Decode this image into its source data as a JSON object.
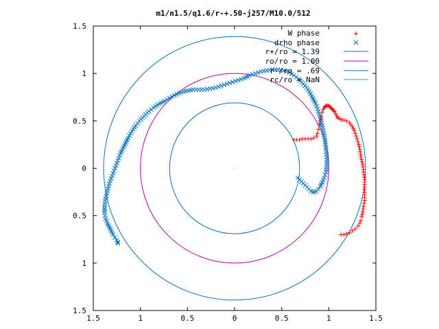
{
  "chart_data": {
    "type": "scatter",
    "title": "m1/n1.5/q1.6/r-+.50-j257/M10.0/512",
    "xlabel": "",
    "ylabel": "",
    "xlim": [
      -1.5,
      1.5
    ],
    "ylim": [
      -1.5,
      1.5
    ],
    "grid": false,
    "legend_position": "top-right",
    "tick_values": [
      -1.5,
      -1,
      -0.5,
      0,
      0.5,
      1,
      1.5
    ],
    "x_tick_labels": [
      "1.5",
      "1",
      "0.5",
      "0",
      "0.5",
      "1",
      "1.5"
    ],
    "y_tick_labels": [
      "1.5",
      "1",
      "0.5",
      "0",
      "0.5",
      "1",
      "1.5"
    ],
    "series": [
      {
        "name": "W phase",
        "marker": "plus",
        "color": "#ff0000",
        "x": [
          0.63,
          0.66,
          0.69,
          0.72,
          0.75,
          0.78,
          0.81,
          0.84,
          0.87,
          0.88,
          0.89,
          0.9,
          0.91,
          0.92,
          0.93,
          0.94,
          0.95,
          0.96,
          0.97,
          0.98,
          0.99,
          1.0,
          1.01,
          1.02,
          1.03,
          1.04,
          1.05,
          1.06,
          1.07,
          1.08,
          1.09,
          1.1,
          1.12,
          1.14,
          1.16,
          1.19,
          1.22,
          1.25,
          1.27,
          1.29,
          1.31,
          1.33,
          1.34,
          1.36,
          1.37,
          1.38,
          1.38,
          1.38,
          1.38,
          1.37,
          1.36,
          1.35,
          1.34,
          1.33,
          1.31,
          1.28,
          1.25,
          1.22,
          1.19,
          1.16,
          1.13
        ],
        "y": [
          0.3,
          0.3,
          0.3,
          0.31,
          0.31,
          0.31,
          0.31,
          0.32,
          0.34,
          0.37,
          0.41,
          0.45,
          0.5,
          0.55,
          0.59,
          0.62,
          0.64,
          0.65,
          0.66,
          0.66,
          0.66,
          0.66,
          0.65,
          0.64,
          0.63,
          0.62,
          0.61,
          0.6,
          0.58,
          0.56,
          0.54,
          0.53,
          0.52,
          0.51,
          0.51,
          0.5,
          0.48,
          0.44,
          0.4,
          0.34,
          0.28,
          0.2,
          0.12,
          0.04,
          -0.04,
          -0.12,
          -0.2,
          -0.28,
          -0.34,
          -0.4,
          -0.46,
          -0.51,
          -0.55,
          -0.58,
          -0.61,
          -0.64,
          -0.66,
          -0.68,
          -0.69,
          -0.7,
          -0.7
        ]
      },
      {
        "name": "drho phase",
        "marker": "cross",
        "color": "#0070c0",
        "x": [
          0.67,
          0.69,
          0.71,
          0.73,
          0.75,
          0.77,
          0.79,
          0.81,
          0.83,
          0.85,
          0.87,
          0.89,
          0.91,
          0.93,
          0.95,
          0.97,
          0.98,
          0.98,
          0.97,
          0.96,
          0.94,
          0.92,
          0.89,
          0.86,
          0.82,
          0.78,
          0.73,
          0.68,
          0.63,
          0.58,
          0.52,
          0.46,
          0.4,
          0.34,
          0.28,
          0.22,
          0.16,
          0.1,
          0.04,
          -0.02,
          -0.08,
          -0.14,
          -0.2,
          -0.26,
          -0.32,
          -0.38,
          -0.44,
          -0.49,
          -0.54,
          -0.59,
          -0.64,
          -0.69,
          -0.74,
          -0.8,
          -0.86,
          -0.91,
          -0.96,
          -1.01,
          -1.05,
          -1.09,
          -1.13,
          -1.17,
          -1.21,
          -1.24,
          -1.27,
          -1.3,
          -1.33,
          -1.35,
          -1.37,
          -1.38,
          -1.38,
          -1.37,
          -1.35,
          -1.33,
          -1.31,
          -1.29,
          -1.27,
          -1.25,
          -1.24,
          -1.24
        ],
        "y": [
          -0.1,
          -0.12,
          -0.14,
          -0.16,
          -0.18,
          -0.2,
          -0.22,
          -0.24,
          -0.25,
          -0.25,
          -0.24,
          -0.22,
          -0.19,
          -0.15,
          -0.1,
          -0.04,
          0.04,
          0.12,
          0.2,
          0.3,
          0.4,
          0.5,
          0.6,
          0.68,
          0.76,
          0.83,
          0.89,
          0.94,
          0.98,
          1.01,
          1.03,
          1.04,
          1.04,
          1.03,
          1.02,
          1.0,
          0.98,
          0.95,
          0.93,
          0.91,
          0.89,
          0.87,
          0.85,
          0.84,
          0.83,
          0.83,
          0.83,
          0.82,
          0.81,
          0.79,
          0.77,
          0.74,
          0.71,
          0.68,
          0.64,
          0.6,
          0.55,
          0.5,
          0.45,
          0.39,
          0.32,
          0.24,
          0.16,
          0.08,
          0.0,
          -0.08,
          -0.16,
          -0.24,
          -0.32,
          -0.4,
          -0.47,
          -0.53,
          -0.58,
          -0.62,
          -0.66,
          -0.7,
          -0.73,
          -0.76,
          -0.78,
          -0.79
        ]
      },
      {
        "name": "r+/ro = 1.39",
        "marker": "line",
        "color": "#0072bd",
        "radius": 1.39
      },
      {
        "name": "ro/ro = 1.00",
        "marker": "line",
        "color": "#b000b0",
        "radius": 1.0
      },
      {
        "name": "r-/ro = .69",
        "marker": "line",
        "color": "#0072bd",
        "radius": 0.69
      },
      {
        "name": "rc/ro = NaN",
        "marker": "line",
        "color": "#00b4d8"
      }
    ]
  }
}
